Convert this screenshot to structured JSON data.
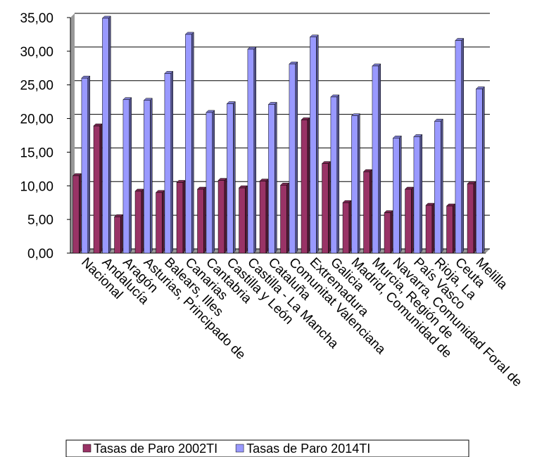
{
  "chart_data": {
    "type": "bar",
    "categories": [
      "Nacional",
      "Andalucía",
      "Aragón",
      "Asturias, Principado de",
      "Balears, Illes",
      "Canarias",
      "Cantabria",
      "Castilla y León",
      "Castilla - La Mancha",
      "Cataluña",
      "Comunitat Valenciana",
      "Extremadura",
      "Galicia",
      "Madrid, Comunidad de",
      "Murcia, Región de",
      "Navarra, Comunidad Foral de",
      "País Vasco",
      "Rioja, La",
      "Ceuta",
      "Melilla"
    ],
    "series": [
      {
        "name": "Tasas de Paro 2002TI",
        "color": "#993366",
        "values": [
          11.5,
          18.9,
          5.4,
          9.2,
          9.0,
          10.5,
          9.5,
          10.8,
          9.7,
          10.7,
          10.1,
          19.8,
          13.3,
          7.5,
          12.1,
          6.0,
          9.5,
          7.1,
          7.0,
          10.3
        ]
      },
      {
        "name": "Tasas de Paro 2014TI",
        "color": "#9999ff",
        "values": [
          26.0,
          34.9,
          22.8,
          22.7,
          26.7,
          32.5,
          20.9,
          22.2,
          30.3,
          22.1,
          28.1,
          32.1,
          23.2,
          20.4,
          27.8,
          17.1,
          17.3,
          19.6,
          31.6,
          24.4
        ]
      }
    ],
    "ylim": [
      0,
      35
    ],
    "yticks": [
      {
        "value": 0,
        "label": "0,00"
      },
      {
        "value": 5,
        "label": "5,00"
      },
      {
        "value": 10,
        "label": "10,00"
      },
      {
        "value": 15,
        "label": "15,00"
      },
      {
        "value": 20,
        "label": "20,00"
      },
      {
        "value": 25,
        "label": "25,00"
      },
      {
        "value": 30,
        "label": "30,00"
      },
      {
        "value": 35,
        "label": "35,00"
      }
    ],
    "grid": true
  }
}
